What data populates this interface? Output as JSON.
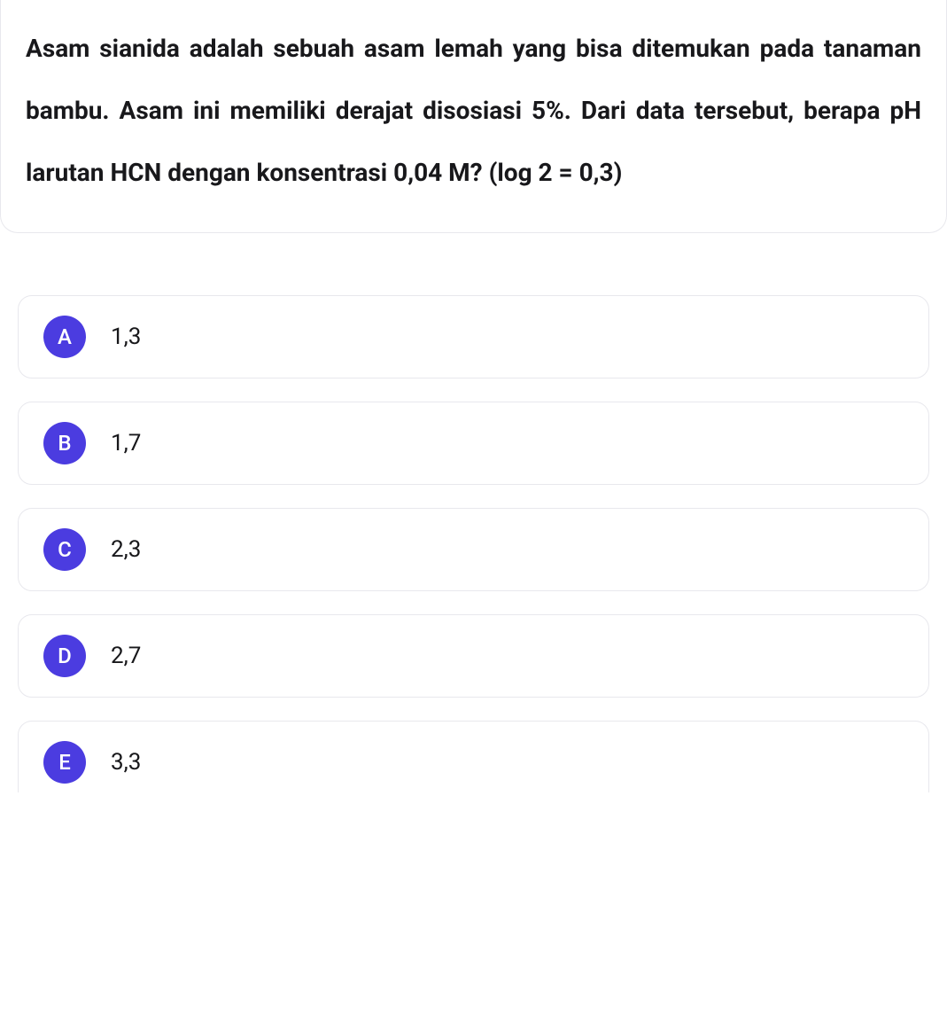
{
  "question": {
    "text": "Asam sianida adalah sebuah asam lemah yang bisa ditemukan pada tanaman bambu. Asam ini memiliki derajat disosiasi 5%. Dari data tersebut, berapa pH larutan HCN dengan konsentrasi 0,04 M? (log 2 = 0,3)"
  },
  "options": [
    {
      "letter": "A",
      "value": "1,3"
    },
    {
      "letter": "B",
      "value": "1,7"
    },
    {
      "letter": "C",
      "value": "2,3"
    },
    {
      "letter": "D",
      "value": "2,7"
    },
    {
      "letter": "E",
      "value": "3,3"
    }
  ],
  "styling": {
    "badge_bg_color": "#4b3ce0",
    "badge_text_color": "#ffffff",
    "question_text_color": "#18181b",
    "option_text_color": "#18181b",
    "border_color": "#e8e8ed",
    "background_color": "#ffffff",
    "question_font_size": 28,
    "question_font_weight": 700,
    "option_font_size": 26,
    "badge_size": 48,
    "border_radius": 16
  }
}
